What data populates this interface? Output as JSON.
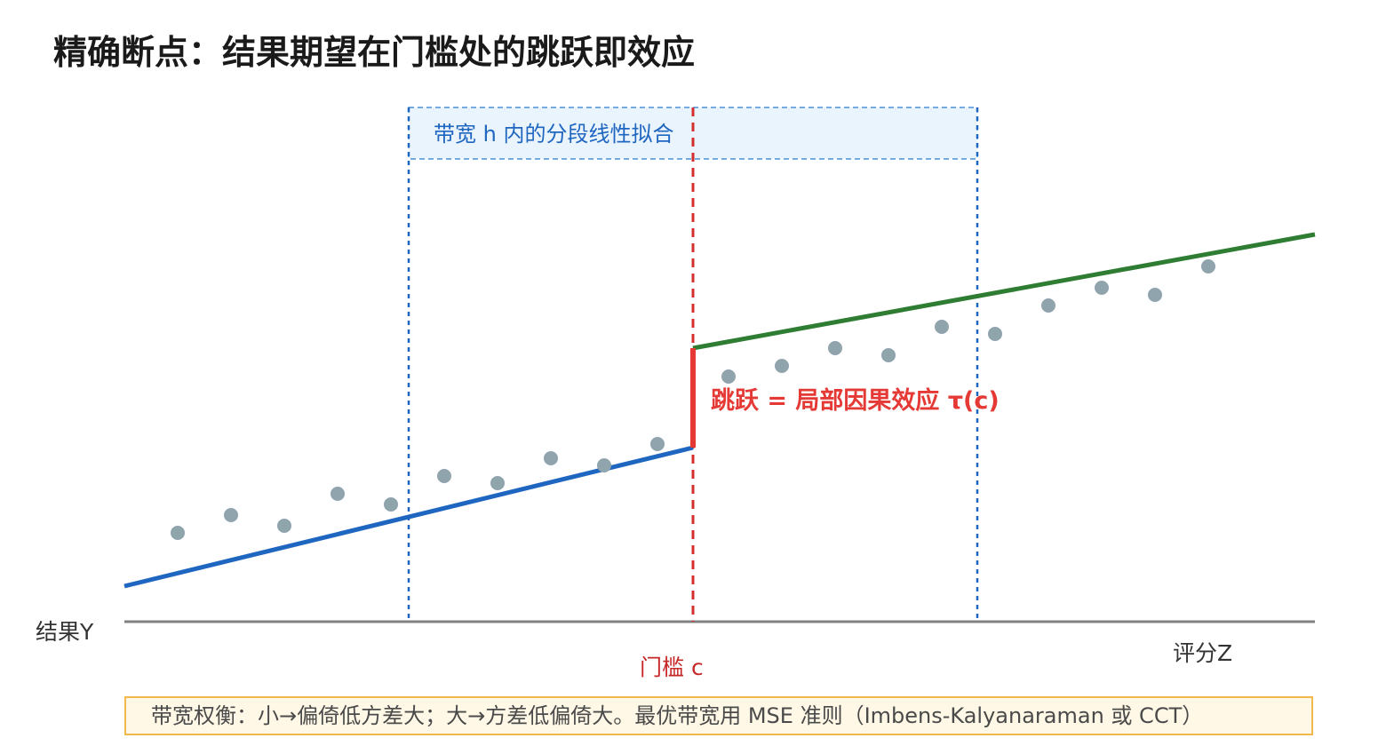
{
  "title": "精确断点：结果期望在门槛处的跳跃即效应",
  "y_axis_label": "结果Y",
  "x_axis_label": "评分Z",
  "threshold_label": "门槛 c",
  "bandwidth_label": "带宽 h 内的分段线性拟合",
  "jump_label": "跳跃 = 局部因果效应 τ(c)",
  "note": "带宽权衡：小→偏倚低方差大；大→方差低偏倚大。最优带宽用 MSE 准则（Imbens-Kalyanaraman 或 CCT）",
  "colors": {
    "left_fit": "#1f66c1",
    "right_fit": "#2e7d32",
    "threshold": "#d32f2f",
    "bandwidth": "#1f66c1",
    "points": "#90a4ae",
    "axis": "#808080",
    "note_border": "#f2b84b"
  }
}
